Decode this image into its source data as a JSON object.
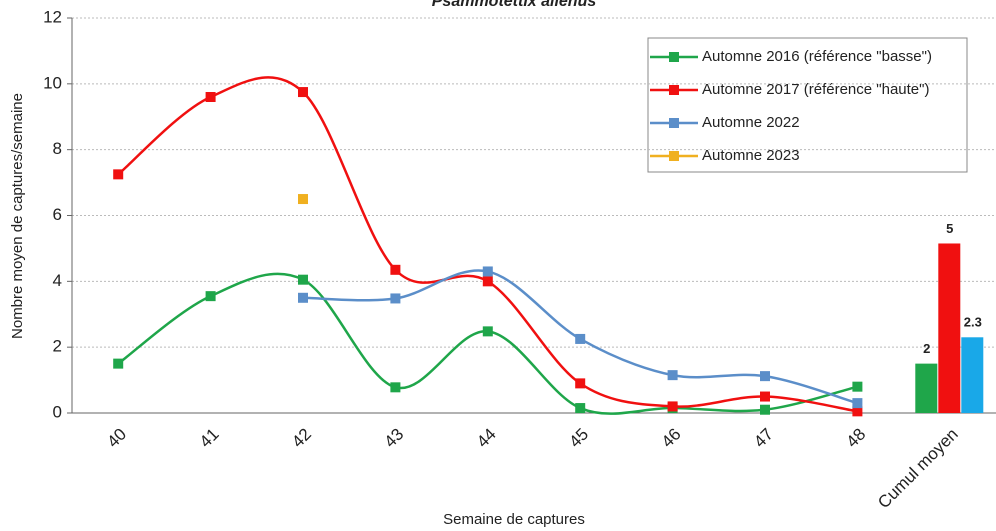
{
  "chart_data": {
    "type": "line",
    "title": "Psammotettix alienus",
    "x_label": "Semaine de captures",
    "y_label": "Nombre moyen de captures/semaine",
    "categories": [
      "40",
      "41",
      "42",
      "43",
      "44",
      "45",
      "46",
      "47",
      "48",
      "Cumul moyen"
    ],
    "ylim": [
      0,
      12
    ],
    "yticks": [
      0,
      2,
      4,
      6,
      8,
      10,
      12
    ],
    "grid": true,
    "legend": "upper right",
    "series": [
      {
        "name": "Automne 2016 (référence \"basse\")",
        "color": "#1fa64a",
        "values": [
          1.5,
          3.55,
          4.05,
          0.78,
          2.48,
          0.15,
          0.15,
          0.1,
          0.8,
          null
        ],
        "cumul": 1.5,
        "cumul_label": "2",
        "cumul_color": "#1fa64a"
      },
      {
        "name": "Automne 2017 (référence \"haute\")",
        "color": "#f01010",
        "values": [
          7.25,
          9.6,
          9.75,
          4.35,
          4.0,
          0.9,
          0.2,
          0.5,
          0.05,
          null
        ],
        "cumul": 5.15,
        "cumul_label": "5",
        "cumul_color": "#f01010"
      },
      {
        "name": "Automne 2022",
        "color": "#5b8ec9",
        "values": [
          null,
          null,
          3.5,
          3.48,
          4.3,
          2.25,
          1.15,
          1.12,
          0.3,
          null
        ],
        "cumul": 2.3,
        "cumul_label": "2.3",
        "cumul_color": "#19a8e8"
      },
      {
        "name": "Automne 2023",
        "color": "#f0b020",
        "values": [
          null,
          null,
          6.5,
          null,
          null,
          null,
          null,
          null,
          null,
          null
        ]
      }
    ]
  }
}
